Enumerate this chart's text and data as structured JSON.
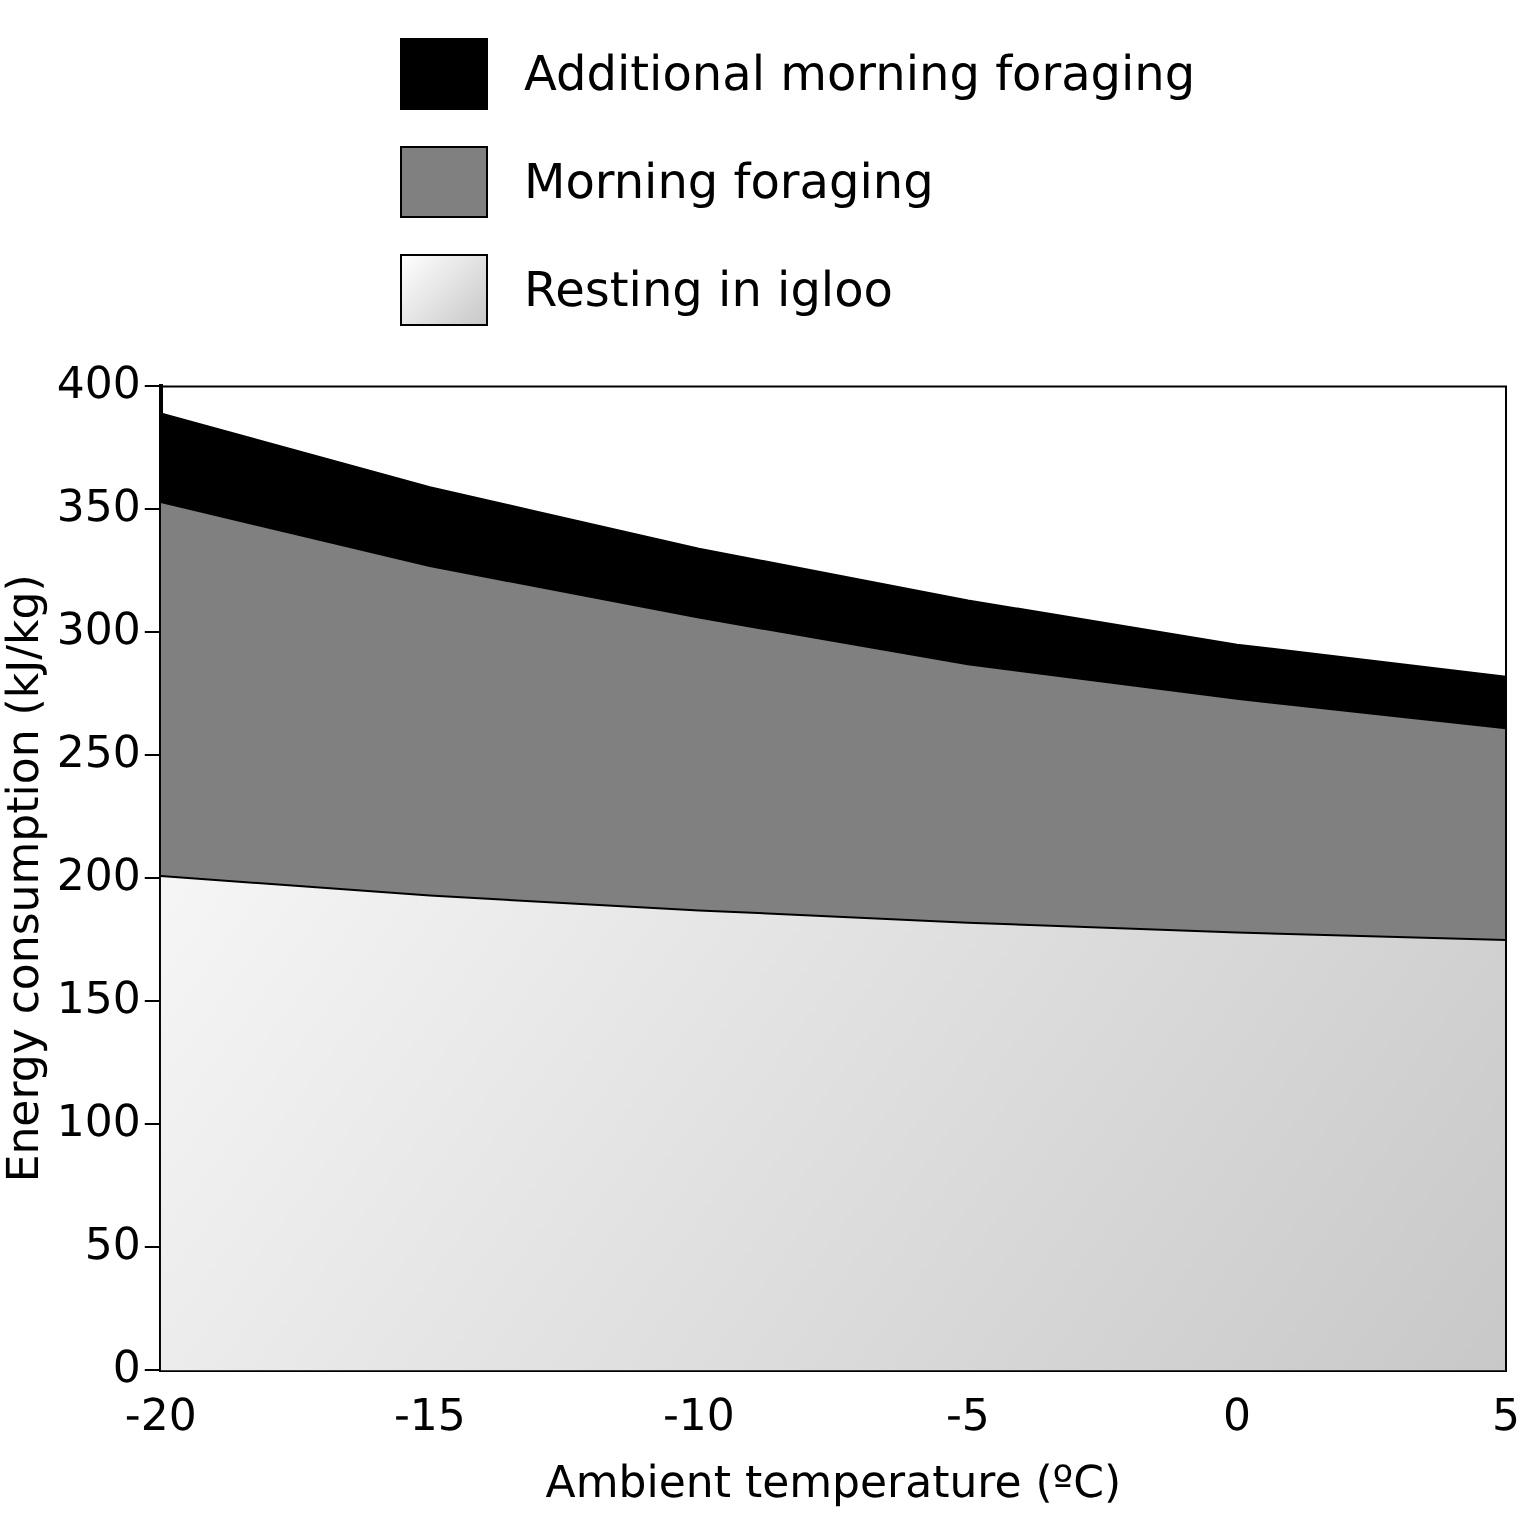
{
  "chart_data": {
    "type": "area",
    "xlabel": "Ambient temperature (ºC)",
    "ylabel": "Energy consumption (kJ/kg)",
    "x": [
      -20,
      -15,
      -10,
      -5,
      0,
      5
    ],
    "stacked": true,
    "xlim": [
      -20,
      5
    ],
    "xticks": [
      -20,
      -15,
      -10,
      -5,
      0,
      5
    ],
    "ylim": [
      0,
      400
    ],
    "yticks": [
      0,
      50,
      100,
      150,
      200,
      250,
      300,
      350,
      400
    ],
    "grid": false,
    "legend": "top",
    "series": [
      {
        "name": "Resting in igloo",
        "color": "#c8c8c8",
        "values": [
          201,
          193,
          187,
          182,
          178,
          175
        ]
      },
      {
        "name": "Morning foraging",
        "color": "#808080",
        "values": [
          152,
          134,
          119,
          105,
          95,
          86
        ]
      },
      {
        "name": "Additional morning foraging",
        "color": "#000000",
        "values": [
          36,
          32,
          28,
          26,
          22,
          21
        ]
      }
    ]
  }
}
